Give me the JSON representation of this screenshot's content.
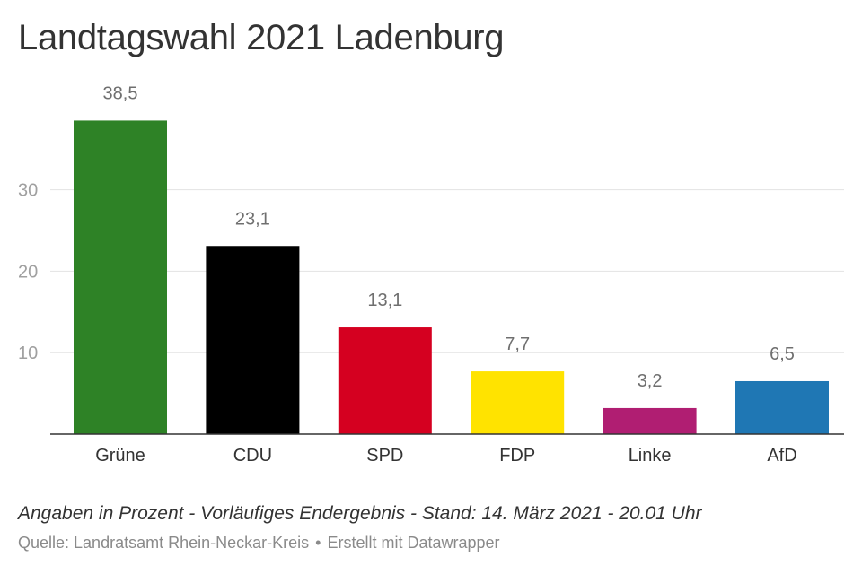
{
  "title": "Landtagswahl 2021 Ladenburg",
  "notes": "Angaben in Prozent - Vorläufiges Endergebnis - Stand: 14. März 2021 - 20.01 Uhr",
  "source": {
    "text": "Quelle: Landratsamt Rhein-Neckar-Kreis",
    "separator": "•",
    "credit": "Erstellt mit Datawrapper"
  },
  "chart_data": {
    "type": "bar",
    "title": "Landtagswahl 2021 Ladenburg",
    "xlabel": "",
    "ylabel": "",
    "categories": [
      "Grüne",
      "CDU",
      "SPD",
      "FDP",
      "Linke",
      "AfD"
    ],
    "values": [
      38.5,
      23.1,
      13.1,
      7.7,
      3.2,
      6.5
    ],
    "value_labels": [
      "38,5",
      "23,1",
      "13,1",
      "7,7",
      "3,2",
      "6,5"
    ],
    "colors": [
      "#2e8226",
      "#000000",
      "#d50020",
      "#ffe300",
      "#b01e72",
      "#1f77b4"
    ],
    "ylim": [
      0,
      40
    ],
    "yticks": [
      10,
      20,
      30
    ],
    "ytick_labels": [
      "10",
      "20",
      "30"
    ],
    "grid": true,
    "legend": "none"
  }
}
